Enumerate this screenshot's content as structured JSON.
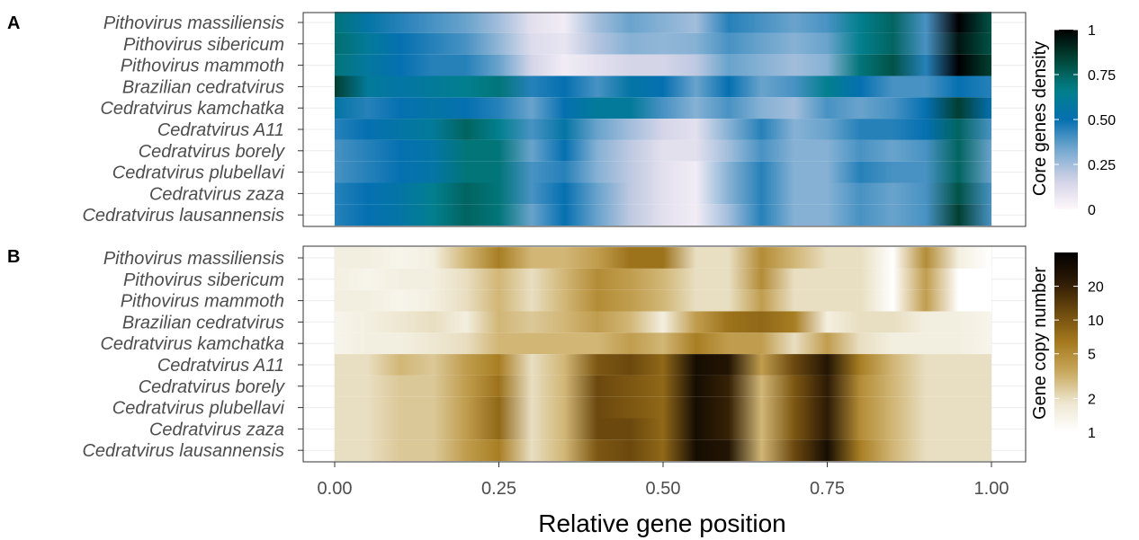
{
  "x_axis": {
    "label": "Relative gene position",
    "ticks": [
      "0.00",
      "0.25",
      "0.50",
      "0.75",
      "1.00"
    ],
    "tick_values": [
      0,
      0.25,
      0.5,
      0.75,
      1.0
    ],
    "range": [
      0,
      1
    ]
  },
  "chart_data": [
    {
      "type": "heatmap",
      "panel": "A",
      "rows": [
        "Pithovirus massiliensis",
        "Pithovirus sibericum",
        "Pithovirus mammoth",
        "Brazilian cedratvirus",
        "Cedratvirus kamchatka",
        "Cedratvirus A11",
        "Cedratvirus borely",
        "Cedratvirus plubellavi",
        "Cedratvirus zaza",
        "Cedratvirus lausannensis"
      ],
      "x": [
        0.0,
        0.05,
        0.1,
        0.15,
        0.2,
        0.25,
        0.3,
        0.35,
        0.4,
        0.45,
        0.5,
        0.55,
        0.6,
        0.65,
        0.7,
        0.75,
        0.8,
        0.85,
        0.9,
        0.95,
        1.0
      ],
      "values": [
        [
          0.7,
          0.55,
          0.45,
          0.4,
          0.35,
          0.25,
          0.1,
          0.05,
          0.25,
          0.35,
          0.3,
          0.25,
          0.45,
          0.4,
          0.35,
          0.4,
          0.65,
          0.75,
          0.4,
          1.0,
          0.8
        ],
        [
          0.72,
          0.6,
          0.5,
          0.45,
          0.4,
          0.28,
          0.12,
          0.08,
          0.22,
          0.3,
          0.28,
          0.3,
          0.4,
          0.35,
          0.3,
          0.35,
          0.65,
          0.75,
          0.4,
          0.95,
          0.8
        ],
        [
          0.7,
          0.58,
          0.5,
          0.45,
          0.45,
          0.35,
          0.15,
          0.05,
          0.1,
          0.15,
          0.15,
          0.2,
          0.35,
          0.3,
          0.25,
          0.3,
          0.7,
          0.8,
          0.45,
          1.0,
          0.85
        ],
        [
          0.85,
          0.6,
          0.55,
          0.6,
          0.65,
          0.7,
          0.45,
          0.5,
          0.4,
          0.55,
          0.5,
          0.35,
          0.5,
          0.35,
          0.4,
          0.65,
          0.5,
          0.4,
          0.4,
          0.5,
          0.45
        ],
        [
          0.55,
          0.45,
          0.5,
          0.55,
          0.5,
          0.45,
          0.35,
          0.5,
          0.6,
          0.6,
          0.4,
          0.3,
          0.4,
          0.3,
          0.25,
          0.4,
          0.35,
          0.4,
          0.5,
          0.85,
          0.5
        ],
        [
          0.45,
          0.5,
          0.55,
          0.6,
          0.75,
          0.65,
          0.4,
          0.55,
          0.35,
          0.25,
          0.15,
          0.1,
          0.3,
          0.45,
          0.3,
          0.35,
          0.45,
          0.45,
          0.5,
          0.75,
          0.4
        ],
        [
          0.4,
          0.45,
          0.5,
          0.55,
          0.7,
          0.7,
          0.35,
          0.5,
          0.3,
          0.2,
          0.1,
          0.1,
          0.25,
          0.4,
          0.3,
          0.3,
          0.4,
          0.35,
          0.4,
          0.75,
          0.35
        ],
        [
          0.4,
          0.45,
          0.5,
          0.55,
          0.7,
          0.7,
          0.4,
          0.45,
          0.3,
          0.2,
          0.1,
          0.05,
          0.3,
          0.45,
          0.3,
          0.3,
          0.45,
          0.4,
          0.4,
          0.75,
          0.35
        ],
        [
          0.45,
          0.5,
          0.55,
          0.65,
          0.75,
          0.7,
          0.4,
          0.5,
          0.35,
          0.2,
          0.1,
          0.05,
          0.3,
          0.45,
          0.3,
          0.3,
          0.4,
          0.35,
          0.4,
          0.8,
          0.4
        ],
        [
          0.45,
          0.5,
          0.55,
          0.65,
          0.75,
          0.7,
          0.35,
          0.5,
          0.35,
          0.2,
          0.1,
          0.05,
          0.25,
          0.45,
          0.3,
          0.3,
          0.4,
          0.35,
          0.4,
          0.85,
          0.4
        ]
      ],
      "legend": {
        "title": "Core genes density",
        "ticks": [
          "0",
          "0.25",
          "0.50",
          "0.75",
          "1"
        ],
        "tick_values": [
          0,
          0.25,
          0.5,
          0.75,
          1
        ],
        "range": [
          0,
          1
        ],
        "scale": "linear",
        "colors": [
          "#FFF7FB",
          "#D0D1E6",
          "#74A9CF",
          "#0570B0",
          "#02818A",
          "#014636",
          "#000000"
        ]
      }
    },
    {
      "type": "heatmap",
      "panel": "B",
      "rows": [
        "Pithovirus massiliensis",
        "Pithovirus sibericum",
        "Pithovirus mammoth",
        "Brazilian cedratvirus",
        "Cedratvirus kamchatka",
        "Cedratvirus A11",
        "Cedratvirus borely",
        "Cedratvirus plubellavi",
        "Cedratvirus zaza",
        "Cedratvirus lausannensis"
      ],
      "x": [
        0.0,
        0.05,
        0.1,
        0.15,
        0.2,
        0.25,
        0.3,
        0.35,
        0.4,
        0.45,
        0.5,
        0.55,
        0.6,
        0.65,
        0.7,
        0.75,
        0.8,
        0.85,
        0.9,
        0.95,
        1.0
      ],
      "values": [
        [
          1.5,
          1.5,
          1.3,
          1.5,
          3,
          6,
          3,
          3,
          4,
          7,
          7,
          2,
          2,
          5,
          3,
          2,
          2,
          1,
          5,
          1.5,
          1
        ],
        [
          1.5,
          1.3,
          1.5,
          1.5,
          2,
          3,
          2,
          3,
          5,
          4,
          3,
          2,
          2,
          5,
          2,
          2,
          2,
          1,
          4,
          1,
          1
        ],
        [
          1.5,
          1.5,
          1.3,
          1.5,
          2,
          3,
          2,
          3,
          5,
          4,
          3,
          2,
          2,
          4,
          2,
          2,
          2,
          1,
          4,
          1,
          1
        ],
        [
          1.3,
          1.5,
          1.8,
          2,
          1.5,
          3,
          2.5,
          3,
          4,
          3,
          1.5,
          4,
          7,
          8,
          6,
          1.5,
          2,
          2,
          1.5,
          1.5,
          1.3
        ],
        [
          1.3,
          1.5,
          1.5,
          1.8,
          2,
          3,
          3,
          3,
          3,
          4,
          3,
          6,
          4,
          4,
          2,
          4,
          2,
          1.5,
          1.5,
          1.5,
          1.3
        ],
        [
          2,
          2,
          3,
          2.5,
          4,
          6,
          2,
          3,
          10,
          12,
          8,
          30,
          25,
          4,
          12,
          25,
          6,
          3,
          2,
          2,
          2
        ],
        [
          2,
          2,
          2.5,
          2.5,
          4,
          7,
          2,
          3,
          12,
          10,
          8,
          30,
          20,
          3,
          10,
          22,
          5,
          3,
          2,
          2,
          2
        ],
        [
          2,
          2,
          2.5,
          2.5,
          4,
          8,
          2,
          3,
          12,
          10,
          8,
          30,
          20,
          3,
          10,
          22,
          5,
          3,
          2,
          2,
          2
        ],
        [
          2,
          2,
          2.5,
          2.5,
          4,
          8,
          2,
          3,
          12,
          12,
          8,
          30,
          20,
          3,
          10,
          22,
          5,
          3,
          2,
          2,
          2
        ],
        [
          2,
          2,
          2.5,
          2.5,
          4,
          6,
          2,
          3,
          10,
          12,
          8,
          30,
          25,
          3,
          12,
          30,
          6,
          3,
          2,
          2,
          2
        ]
      ],
      "legend": {
        "title": "Gene copy number",
        "ticks": [
          "1",
          "2",
          "5",
          "10",
          "20"
        ],
        "tick_values": [
          1,
          2,
          5,
          10,
          20
        ],
        "range": [
          1,
          40
        ],
        "scale": "log",
        "colors": [
          "#FFFFFF",
          "#EDE6D0",
          "#C9A95E",
          "#A57A1E",
          "#6E4A0E",
          "#2E1B05",
          "#000000"
        ]
      }
    }
  ]
}
